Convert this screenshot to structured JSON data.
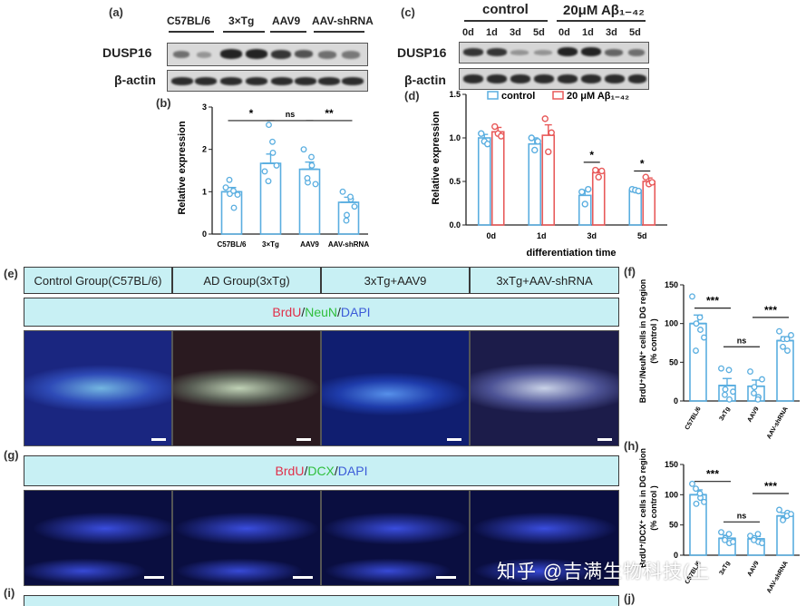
{
  "panels": {
    "a": "(a)",
    "b": "(b)",
    "c": "(c)",
    "d": "(d)",
    "e": "(e)",
    "f": "(f)",
    "g": "(g)",
    "h": "(h)",
    "i": "(i)",
    "j": "(j)"
  },
  "wb_a": {
    "lanes": [
      "C57BL/6",
      "3×Tg",
      "AAV9",
      "AAV-shRNA"
    ],
    "rows": [
      "DUSP16",
      "β-actin"
    ]
  },
  "wb_c": {
    "groups": [
      "control",
      "20μM Aβ₁₋₄₂"
    ],
    "lanes": [
      "0d",
      "1d",
      "3d",
      "5d",
      "0d",
      "1d",
      "3d",
      "5d"
    ],
    "rows": [
      "DUSP16",
      "β-actin"
    ]
  },
  "chart_b_texts": {
    "ylabel": "Relative expression",
    "sig": [
      "*",
      "ns",
      "**"
    ]
  },
  "chart_d_texts": {
    "ylabel": "Relative expression",
    "xlabel": "differentiation time",
    "legend": [
      "control",
      "20 μM Aβ₁₋₄₂"
    ],
    "sig": [
      "*",
      "*"
    ]
  },
  "chart_f_texts": {
    "ylabel_1": "BrdU⁺/NeuN⁺ cells in DG region",
    "ylabel_2": "(% control )",
    "sig": [
      "***",
      "ns",
      "***"
    ]
  },
  "chart_h_texts": {
    "ylabel_1": "BrdU⁺/DCX⁺ cells in DG region",
    "ylabel_2": "(% control )",
    "sig": [
      "***",
      "ns",
      "***"
    ]
  },
  "figure_e": {
    "groups": [
      "Control Group(C57BL/6)",
      "AD Group(3xTg)",
      "3xTg+AAV9",
      "3xTg+AAV-shRNA"
    ],
    "stain": {
      "brdu": "BrdU",
      "sep1": "/",
      "marker": "NeuN",
      "sep2": "/",
      "dapi": "DAPI"
    }
  },
  "figure_g": {
    "stain": {
      "brdu": "BrdU",
      "sep1": "/",
      "marker": "DCX",
      "sep2": "/",
      "dapi": "DAPI"
    }
  },
  "watermark": "知乎 @吉满生物科技(上",
  "colors": {
    "control": "#5aaee0",
    "abeta": "#e85a5a",
    "hdr": "#c8f0f4",
    "brdu": "#e0304a",
    "neun": "#2fbf3c",
    "dapi": "#3b5bd8"
  },
  "chart_data": [
    {
      "id": "b",
      "type": "bar",
      "categories": [
        "C57BL/6",
        "3×Tg",
        "AAV9",
        "AAV-shRNA"
      ],
      "values": [
        1.0,
        1.67,
        1.53,
        0.75
      ],
      "errors": [
        0.1,
        0.22,
        0.17,
        0.12
      ],
      "points": [
        [
          1.1,
          0.95,
          0.62,
          1.28,
          1.02,
          0.93
        ],
        [
          1.48,
          2.58,
          1.92,
          1.25,
          2.18,
          1.62
        ],
        [
          2.0,
          1.22,
          1.62,
          1.32,
          1.82,
          1.18
        ],
        [
          1.0,
          0.45,
          0.82,
          0.32,
          0.88,
          0.65
        ]
      ],
      "ylabel": "Relative expression",
      "ylim": [
        0,
        3
      ],
      "yticks": [
        0,
        1,
        2,
        3
      ]
    },
    {
      "id": "d",
      "type": "bar",
      "categories": [
        "0d",
        "1d",
        "3d",
        "5d"
      ],
      "xlabel": "differentiation time",
      "ylabel": "Relative expression",
      "ylim": [
        0,
        1.5
      ],
      "yticks": [
        0.0,
        0.5,
        1.0,
        1.5
      ],
      "series": [
        {
          "name": "control",
          "values": [
            1.0,
            0.93,
            0.34,
            0.4
          ],
          "errors": [
            0.04,
            0.07,
            0.06,
            0.02
          ],
          "points": [
            [
              1.05,
              0.96,
              0.93
            ],
            [
              1.0,
              0.86,
              0.96
            ],
            [
              0.38,
              0.24,
              0.41
            ],
            [
              0.41,
              0.4,
              0.39
            ]
          ]
        },
        {
          "name": "20 μM Aβ₁₋₄₂",
          "values": [
            1.07,
            1.03,
            0.6,
            0.5
          ],
          "errors": [
            0.05,
            0.12,
            0.04,
            0.04
          ],
          "points": [
            [
              1.13,
              1.05,
              1.02
            ],
            [
              1.22,
              0.84,
              1.06
            ],
            [
              0.63,
              0.55,
              0.62
            ],
            [
              0.55,
              0.47,
              0.49
            ]
          ]
        }
      ]
    },
    {
      "id": "f",
      "type": "bar",
      "categories": [
        "C57BL/6",
        "3xTg",
        "AAV9",
        "AAV-shRNA"
      ],
      "values": [
        100,
        20,
        19,
        78
      ],
      "errors": [
        11,
        9,
        8,
        5
      ],
      "points": [
        [
          135,
          100,
          92,
          65,
          108,
          82
        ],
        [
          42,
          15,
          2,
          8,
          40,
          12
        ],
        [
          38,
          18,
          5,
          10,
          2,
          28
        ],
        [
          90,
          80,
          65,
          70,
          80,
          85
        ]
      ],
      "ylabel": "BrdU⁺/NeuN⁺ cells in DG region (% control )",
      "ylim": [
        0,
        150
      ],
      "yticks": [
        0,
        50,
        100,
        150
      ]
    },
    {
      "id": "h",
      "type": "bar",
      "categories": [
        "C57BL/6",
        "3xTg",
        "AAV9",
        "AAV-shRNA"
      ],
      "values": [
        100,
        28,
        27,
        65
      ],
      "errors": [
        8,
        5,
        4,
        5
      ],
      "points": [
        [
          118,
          85,
          95,
          110,
          102,
          88
        ],
        [
          38,
          28,
          20,
          25,
          35,
          22
        ],
        [
          32,
          28,
          22,
          25,
          35,
          20
        ],
        [
          75,
          60,
          70,
          58,
          65,
          68
        ]
      ],
      "ylabel": "BrdU⁺/DCX⁺ cells in DG region (% control )",
      "ylim": [
        0,
        150
      ],
      "yticks": [
        0,
        50,
        100,
        150
      ]
    }
  ]
}
